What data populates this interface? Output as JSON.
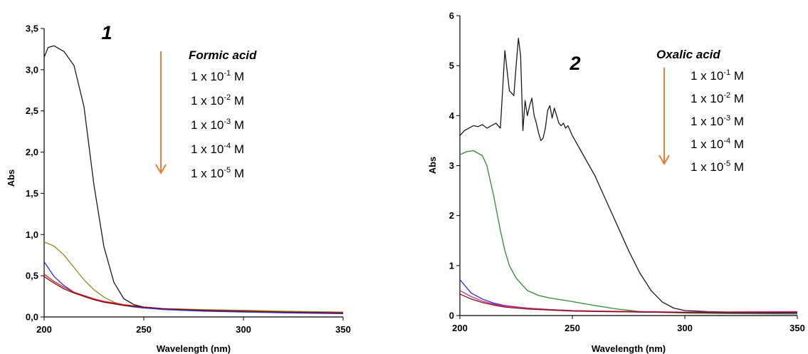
{
  "chart_data": [
    {
      "type": "line",
      "panel_label": "1",
      "xlabel": "Wavelength (nm)",
      "ylabel": "Abs",
      "xlim": [
        200,
        350
      ],
      "ylim": [
        0,
        3.5
      ],
      "x_ticks": [
        "200",
        "250",
        "300",
        "350"
      ],
      "y_ticks": [
        "0,0",
        "0,5",
        "1,0",
        "1,5",
        "2,0",
        "2,5",
        "3,0",
        "3,5"
      ],
      "legend_title": "Formic acid",
      "legend_entries": [
        {
          "prefix": "1 x 10",
          "exp": "-1",
          "unit": "M"
        },
        {
          "prefix": "1 x 10",
          "exp": "-2",
          "unit": "M"
        },
        {
          "prefix": "1 x 10",
          "exp": "-3",
          "unit": "M"
        },
        {
          "prefix": "1 x 10",
          "exp": "-4",
          "unit": "M"
        },
        {
          "prefix": "1 x 10",
          "exp": "-5",
          "unit": "M"
        }
      ],
      "arrow_color": "#ed7d31",
      "series": [
        {
          "color": "#1a1a1a",
          "x": [
            200,
            202,
            205,
            210,
            215,
            220,
            225,
            230,
            235,
            240,
            245,
            250,
            260,
            280,
            300,
            320,
            350
          ],
          "y": [
            3.15,
            3.27,
            3.29,
            3.22,
            3.05,
            2.55,
            1.6,
            0.85,
            0.42,
            0.22,
            0.15,
            0.12,
            0.1,
            0.08,
            0.07,
            0.06,
            0.05
          ]
        },
        {
          "color": "#8c8c1e",
          "x": [
            200,
            205,
            210,
            215,
            220,
            225,
            230,
            235,
            240,
            245,
            250,
            260,
            280,
            300,
            320,
            350
          ],
          "y": [
            0.91,
            0.86,
            0.75,
            0.6,
            0.45,
            0.33,
            0.24,
            0.18,
            0.14,
            0.12,
            0.11,
            0.1,
            0.09,
            0.08,
            0.07,
            0.06
          ]
        },
        {
          "color": "#2a2aee",
          "x": [
            200,
            205,
            210,
            215,
            220,
            225,
            230,
            240,
            250,
            260,
            280,
            300,
            320,
            350
          ],
          "y": [
            0.67,
            0.49,
            0.38,
            0.3,
            0.25,
            0.21,
            0.18,
            0.14,
            0.11,
            0.09,
            0.07,
            0.06,
            0.05,
            0.04
          ]
        },
        {
          "color": "#e02020",
          "x": [
            200,
            205,
            210,
            215,
            220,
            225,
            230,
            240,
            250,
            260,
            280,
            300,
            320,
            350
          ],
          "y": [
            0.52,
            0.43,
            0.36,
            0.3,
            0.26,
            0.22,
            0.19,
            0.15,
            0.12,
            0.1,
            0.08,
            0.07,
            0.06,
            0.05
          ]
        },
        {
          "color": "#7a1010",
          "x": [
            200,
            205,
            210,
            215,
            220,
            225,
            230,
            240,
            250,
            260,
            280,
            300,
            320,
            350
          ],
          "y": [
            0.49,
            0.41,
            0.34,
            0.29,
            0.25,
            0.21,
            0.18,
            0.14,
            0.12,
            0.1,
            0.08,
            0.07,
            0.06,
            0.05
          ]
        }
      ]
    },
    {
      "type": "line",
      "panel_label": "2",
      "xlabel": "Wavelength (nm)",
      "ylabel": "Abs",
      "xlim": [
        200,
        350
      ],
      "ylim": [
        0,
        6
      ],
      "x_ticks": [
        "200",
        "250",
        "300",
        "350"
      ],
      "y_ticks": [
        "0",
        "1",
        "2",
        "3",
        "4",
        "5",
        "6"
      ],
      "legend_title": "Oxalic acid",
      "legend_entries": [
        {
          "prefix": "1 x 10",
          "exp": "-1",
          "unit": "M"
        },
        {
          "prefix": "1 x 10",
          "exp": "-2",
          "unit": "M"
        },
        {
          "prefix": "1 x 10",
          "exp": "-3",
          "unit": "M"
        },
        {
          "prefix": "1 x 10",
          "exp": "-4",
          "unit": "M"
        },
        {
          "prefix": "1 x 10",
          "exp": "-5",
          "unit": "M"
        }
      ],
      "arrow_color": "#ed7d31",
      "series": [
        {
          "color": "#1a1a1a",
          "x": [
            200,
            202,
            204,
            206,
            208,
            210,
            212,
            214,
            216,
            218,
            220,
            222,
            224,
            225,
            226,
            227,
            228,
            229,
            230,
            231,
            232,
            233,
            234,
            235,
            236,
            237,
            238,
            239,
            240,
            241,
            242,
            243,
            244,
            245,
            246,
            247,
            248,
            250,
            255,
            260,
            265,
            270,
            275,
            280,
            285,
            290,
            295,
            300,
            310,
            320,
            350
          ],
          "y": [
            3.6,
            3.7,
            3.75,
            3.8,
            3.78,
            3.82,
            3.75,
            3.8,
            3.85,
            3.75,
            5.3,
            4.5,
            4.4,
            5.0,
            5.55,
            5.2,
            3.7,
            4.3,
            4.0,
            4.2,
            4.35,
            4.0,
            3.85,
            3.65,
            3.5,
            3.55,
            3.75,
            4.1,
            4.2,
            3.95,
            4.15,
            4.0,
            3.85,
            3.8,
            3.85,
            3.75,
            3.8,
            3.6,
            3.2,
            2.8,
            2.3,
            1.8,
            1.3,
            0.85,
            0.5,
            0.27,
            0.15,
            0.1,
            0.08,
            0.07,
            0.07
          ]
        },
        {
          "color": "#2e8b2e",
          "x": [
            200,
            203,
            206,
            210,
            212,
            215,
            218,
            220,
            222,
            225,
            230,
            235,
            240,
            250,
            260,
            270,
            280,
            300,
            320,
            350
          ],
          "y": [
            3.22,
            3.28,
            3.3,
            3.2,
            3.0,
            2.4,
            1.7,
            1.3,
            1.0,
            0.75,
            0.5,
            0.4,
            0.35,
            0.28,
            0.2,
            0.13,
            0.08,
            0.05,
            0.04,
            0.03
          ]
        },
        {
          "color": "#2a2aee",
          "x": [
            200,
            205,
            210,
            215,
            220,
            230,
            240,
            250,
            260,
            280,
            300,
            350
          ],
          "y": [
            0.72,
            0.45,
            0.33,
            0.25,
            0.2,
            0.15,
            0.12,
            0.1,
            0.09,
            0.07,
            0.06,
            0.05
          ]
        },
        {
          "color": "#e02080",
          "x": [
            200,
            205,
            210,
            215,
            220,
            230,
            240,
            250,
            260,
            280,
            300,
            350
          ],
          "y": [
            0.5,
            0.38,
            0.29,
            0.23,
            0.19,
            0.15,
            0.12,
            0.1,
            0.09,
            0.08,
            0.07,
            0.08
          ]
        },
        {
          "color": "#7a1010",
          "x": [
            200,
            205,
            210,
            215,
            220,
            230,
            240,
            250,
            260,
            280,
            300,
            350
          ],
          "y": [
            0.43,
            0.33,
            0.26,
            0.21,
            0.17,
            0.13,
            0.11,
            0.09,
            0.08,
            0.07,
            0.06,
            0.06
          ]
        }
      ]
    }
  ]
}
